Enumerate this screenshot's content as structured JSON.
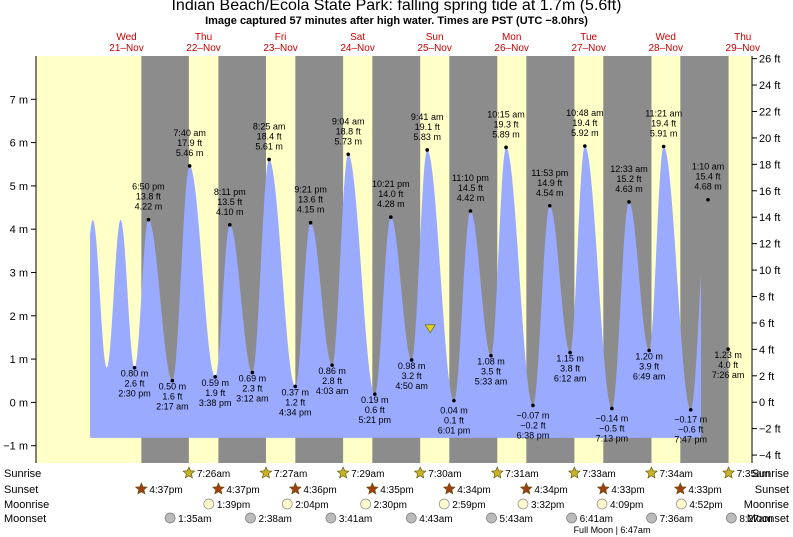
{
  "title": "Indian Beach/Ecola State Park: falling  spring tide at 1.7m (5.6ft)",
  "subtitle": "Image captured 57 minutes after high water. Times are PST (UTC −8.0hrs)",
  "colors": {
    "day": "#ffffc8",
    "night": "#8c8c8c",
    "tide_fill": "#99aaff",
    "day_label": "#cc0000",
    "star": "#c8b428",
    "sunset_star": "#a04010",
    "moonrise": "#fffacc",
    "moonset": "#bbbbbb",
    "now_marker": "#e0d020"
  },
  "chart_data": {
    "type": "area",
    "ylim_m": [
      -1.4,
      8.0
    ],
    "ylim_ft": [
      -4.6,
      26.2
    ],
    "left_ticks_m": [
      -1,
      0,
      1,
      2,
      3,
      4,
      5,
      6,
      7
    ],
    "right_ticks_ft": [
      -4,
      -2,
      0,
      2,
      4,
      6,
      8,
      10,
      12,
      14,
      16,
      18,
      20,
      22,
      24,
      26
    ],
    "days": [
      {
        "dow": "Wed",
        "date": "21–Nov"
      },
      {
        "dow": "Thu",
        "date": "22–Nov"
      },
      {
        "dow": "Fri",
        "date": "23–Nov"
      },
      {
        "dow": "Sat",
        "date": "24–Nov"
      },
      {
        "dow": "Sun",
        "date": "25–Nov"
      },
      {
        "dow": "Mon",
        "date": "26–Nov"
      },
      {
        "dow": "Tue",
        "date": "27–Nov"
      },
      {
        "dow": "Wed",
        "date": "28–Nov"
      },
      {
        "dow": "Thu",
        "date": "29–Nov"
      }
    ],
    "tides": [
      {
        "day": 0,
        "hour": 14.5,
        "m": 0.8,
        "time": "2:30 pm",
        "ft": "2.6 ft",
        "m_label": "0.80 m",
        "kind": "low",
        "label_above": true
      },
      {
        "day": 0,
        "hour": 18.83,
        "m": 4.22,
        "time": "6:50 pm",
        "ft": "13.8 ft",
        "m_label": "4.22 m",
        "kind": "high"
      },
      {
        "day": 1,
        "hour": 2.28,
        "m": 0.5,
        "time": "2:17 am",
        "ft": "1.6 ft",
        "m_label": "0.50 m",
        "kind": "low",
        "label_above": true
      },
      {
        "day": 1,
        "hour": 7.67,
        "m": 5.46,
        "time": "7:40 am",
        "ft": "17.9 ft",
        "m_label": "5.46 m",
        "kind": "high"
      },
      {
        "day": 1,
        "hour": 15.63,
        "m": 0.59,
        "time": "3:38 pm",
        "ft": "1.9 ft",
        "m_label": "0.59 m",
        "kind": "low",
        "label_above": true
      },
      {
        "day": 1,
        "hour": 20.18,
        "m": 4.1,
        "time": "8:11 pm",
        "ft": "13.5 ft",
        "m_label": "4.10 m",
        "kind": "high"
      },
      {
        "day": 2,
        "hour": 3.2,
        "m": 0.69,
        "time": "3:12 am",
        "ft": "2.3 ft",
        "m_label": "0.69 m",
        "kind": "low",
        "label_above": true
      },
      {
        "day": 2,
        "hour": 8.42,
        "m": 5.61,
        "time": "8:25 am",
        "ft": "18.4 ft",
        "m_label": "5.61 m",
        "kind": "high"
      },
      {
        "day": 2,
        "hour": 16.57,
        "m": 0.37,
        "time": "4:34 pm",
        "ft": "1.2 ft",
        "m_label": "0.37 m",
        "kind": "low",
        "label_above": true
      },
      {
        "day": 2,
        "hour": 21.35,
        "m": 4.15,
        "time": "9:21 pm",
        "ft": "13.6 ft",
        "m_label": "4.15 m",
        "kind": "high"
      },
      {
        "day": 3,
        "hour": 4.05,
        "m": 0.86,
        "time": "4:03 am",
        "ft": "2.8 ft",
        "m_label": "0.86 m",
        "kind": "low",
        "label_above": true
      },
      {
        "day": 3,
        "hour": 9.07,
        "m": 5.73,
        "time": "9:04 am",
        "ft": "18.8 ft",
        "m_label": "5.73 m",
        "kind": "high"
      },
      {
        "day": 3,
        "hour": 17.35,
        "m": 0.19,
        "time": "5:21 pm",
        "ft": "0.6 ft",
        "m_label": "0.19 m",
        "kind": "low",
        "label_above": true
      },
      {
        "day": 3,
        "hour": 22.35,
        "m": 4.28,
        "time": "10:21 pm",
        "ft": "14.0 ft",
        "m_label": "4.28 m",
        "kind": "high"
      },
      {
        "day": 4,
        "hour": 4.83,
        "m": 0.98,
        "time": "4:50 am",
        "ft": "3.2 ft",
        "m_label": "0.98 m",
        "kind": "low",
        "label_above": true
      },
      {
        "day": 4,
        "hour": 9.68,
        "m": 5.83,
        "time": "9:41 am",
        "ft": "19.1 ft",
        "m_label": "5.83 m",
        "kind": "high"
      },
      {
        "day": 4,
        "hour": 18.02,
        "m": 0.04,
        "time": "6:01 pm",
        "ft": "0.1 ft",
        "m_label": "0.04 m",
        "kind": "low",
        "label_above": false
      },
      {
        "day": 4,
        "hour": 23.17,
        "m": 4.42,
        "time": "11:10 pm",
        "ft": "14.5 ft",
        "m_label": "4.42 m",
        "kind": "high"
      },
      {
        "day": 5,
        "hour": 5.55,
        "m": 1.08,
        "time": "5:33 am",
        "ft": "3.5 ft",
        "m_label": "1.08 m",
        "kind": "low",
        "label_above": true
      },
      {
        "day": 5,
        "hour": 10.25,
        "m": 5.89,
        "time": "10:15 am",
        "ft": "19.3 ft",
        "m_label": "5.89 m",
        "kind": "high"
      },
      {
        "day": 5,
        "hour": 18.63,
        "m": -0.07,
        "time": "6:38 pm",
        "ft": "−0.2 ft",
        "m_label": "−0.07 m",
        "kind": "low",
        "label_above": false
      },
      {
        "day": 5,
        "hour": 23.88,
        "m": 4.54,
        "time": "11:53 pm",
        "ft": "14.9 ft",
        "m_label": "4.54 m",
        "kind": "high"
      },
      {
        "day": 6,
        "hour": 6.2,
        "m": 1.15,
        "time": "6:12 am",
        "ft": "3.8 ft",
        "m_label": "1.15 m",
        "kind": "low",
        "label_above": true
      },
      {
        "day": 6,
        "hour": 10.8,
        "m": 5.92,
        "time": "10:48 am",
        "ft": "19.4 ft",
        "m_label": "5.92 m",
        "kind": "high"
      },
      {
        "day": 6,
        "hour": 19.22,
        "m": -0.14,
        "time": "7:13 pm",
        "ft": "−0.5 ft",
        "m_label": "−0.14 m",
        "kind": "low",
        "label_above": false
      },
      {
        "day": 7,
        "hour": 0.55,
        "m": 4.63,
        "time": "12:33 am",
        "ft": "15.2 ft",
        "m_label": "4.63 m",
        "kind": "high"
      },
      {
        "day": 7,
        "hour": 6.82,
        "m": 1.2,
        "time": "6:49 am",
        "ft": "3.9 ft",
        "m_label": "1.20 m",
        "kind": "low",
        "label_above": true
      },
      {
        "day": 7,
        "hour": 11.35,
        "m": 5.91,
        "time": "11:21 am",
        "ft": "19.4 ft",
        "m_label": "5.91 m",
        "kind": "high"
      },
      {
        "day": 7,
        "hour": 19.78,
        "m": -0.17,
        "time": "7:47 pm",
        "ft": "−0.6 ft",
        "m_label": "−0.17 m",
        "kind": "low",
        "label_above": false
      },
      {
        "day": 8,
        "hour": 1.17,
        "m": 4.68,
        "time": "1:10 am",
        "ft": "15.4 ft",
        "m_label": "4.68 m",
        "kind": "high"
      },
      {
        "day": 8,
        "hour": 7.43,
        "m": 1.23,
        "time": "7:26 am",
        "ft": "4.0 ft",
        "m_label": "1.23 m",
        "kind": "low",
        "label_above": true
      }
    ],
    "sunrise": [
      {
        "day": 1,
        "hour": 7.43,
        "label": "7:26am"
      },
      {
        "day": 2,
        "hour": 7.45,
        "label": "7:27am"
      },
      {
        "day": 3,
        "hour": 7.48,
        "label": "7:29am"
      },
      {
        "day": 4,
        "hour": 7.5,
        "label": "7:30am"
      },
      {
        "day": 5,
        "hour": 7.52,
        "label": "7:31am"
      },
      {
        "day": 6,
        "hour": 7.55,
        "label": "7:33am"
      },
      {
        "day": 7,
        "hour": 7.57,
        "label": "7:34am"
      },
      {
        "day": 8,
        "hour": 7.58,
        "label": "7:35am"
      }
    ],
    "sunset": [
      {
        "day": 0,
        "hour": 16.62,
        "label": "4:37pm"
      },
      {
        "day": 1,
        "hour": 16.62,
        "label": "4:37pm"
      },
      {
        "day": 2,
        "hour": 16.6,
        "label": "4:36pm"
      },
      {
        "day": 3,
        "hour": 16.58,
        "label": "4:35pm"
      },
      {
        "day": 4,
        "hour": 16.57,
        "label": "4:34pm"
      },
      {
        "day": 5,
        "hour": 16.57,
        "label": "4:34pm"
      },
      {
        "day": 6,
        "hour": 16.55,
        "label": "4:33pm"
      },
      {
        "day": 7,
        "hour": 16.55,
        "label": "4:33pm"
      }
    ],
    "moonrise": [
      {
        "day": 1,
        "hour": 13.65,
        "label": "1:39pm"
      },
      {
        "day": 2,
        "hour": 14.07,
        "label": "2:04pm"
      },
      {
        "day": 3,
        "hour": 14.5,
        "label": "2:30pm"
      },
      {
        "day": 4,
        "hour": 14.98,
        "label": "2:59pm"
      },
      {
        "day": 5,
        "hour": 15.53,
        "label": "3:32pm"
      },
      {
        "day": 6,
        "hour": 16.15,
        "label": "4:09pm"
      },
      {
        "day": 7,
        "hour": 16.87,
        "label": "4:52pm"
      }
    ],
    "moonset": [
      {
        "day": 1,
        "hour": 1.58,
        "label": "1:35am"
      },
      {
        "day": 2,
        "hour": 2.63,
        "label": "2:38am"
      },
      {
        "day": 3,
        "hour": 3.68,
        "label": "3:41am"
      },
      {
        "day": 4,
        "hour": 4.72,
        "label": "4:43am"
      },
      {
        "day": 5,
        "hour": 5.72,
        "label": "5:43am"
      },
      {
        "day": 6,
        "hour": 6.68,
        "label": "6:41am"
      },
      {
        "day": 7,
        "hour": 7.6,
        "label": "7:36am"
      },
      {
        "day": 8,
        "hour": 8.45,
        "label": "8:27am"
      }
    ],
    "rows": {
      "sunrise": "Sunrise",
      "sunset": "Sunset",
      "moonrise": "Moonrise",
      "moonset": "Moonset"
    },
    "full_moon_label": "Full Moon | 6:47am",
    "now": {
      "day": 4,
      "hour": 10.63,
      "m": 1.7
    }
  }
}
